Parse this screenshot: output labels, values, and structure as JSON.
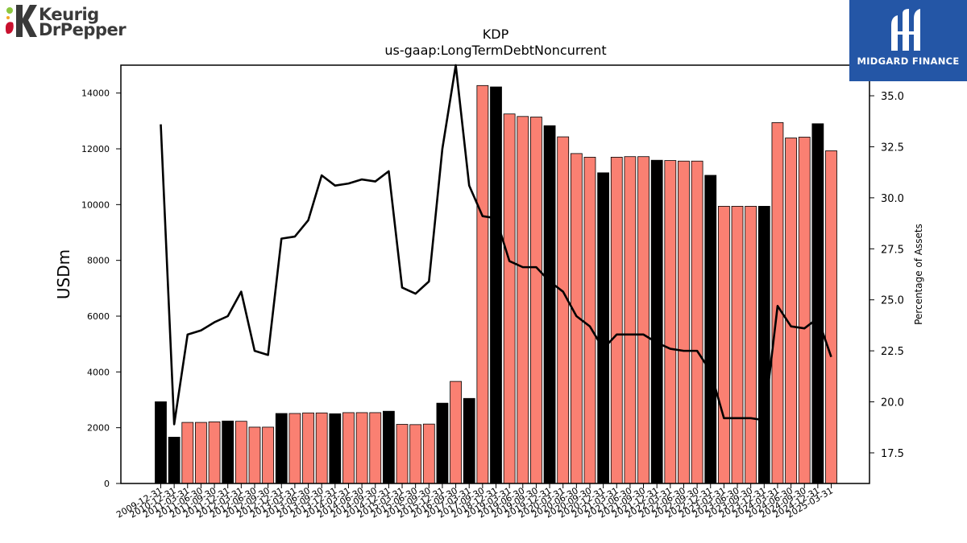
{
  "header": {
    "company_logo_line1": "Keurig",
    "company_logo_line2": "DrPepper"
  },
  "watermark": {
    "text": "MIDGARD FINANCE"
  },
  "colors": {
    "bar_normal": "#fa8072",
    "bar_highlight": "#000000",
    "line": "#000000",
    "brand_blue": "#2456a6"
  },
  "chart_data": {
    "type": "bar",
    "title": "KDP",
    "subtitle": "us-gaap:LongTermDebtNoncurrent",
    "ylabel": "USDm",
    "y2label": "Percentage of Assets",
    "ylim": [
      0,
      15000
    ],
    "y2lim": [
      16.0,
      36.5
    ],
    "yticks": [
      0,
      2000,
      4000,
      6000,
      8000,
      10000,
      12000,
      14000
    ],
    "y2ticks": [
      "17.5",
      "20.0",
      "22.5",
      "25.0",
      "27.5",
      "30.0",
      "32.5",
      "35.0"
    ],
    "categories": [
      "2009-12-31",
      "2010-12-31",
      "2011-03-31",
      "2011-06-30",
      "2011-09-30",
      "2011-12-31",
      "2012-03-31",
      "2012-06-30",
      "2012-09-30",
      "2012-12-31",
      "2013-03-31",
      "2013-06-30",
      "2013-09-30",
      "2013-12-31",
      "2014-03-31",
      "2014-06-30",
      "2014-09-30",
      "2014-12-31",
      "2015-03-31",
      "2015-06-30",
      "2015-09-30",
      "2015-12-31",
      "2016-09-30",
      "2017-03-31",
      "2017-09-30",
      "2018-12-31",
      "2019-03-31",
      "2019-06-30",
      "2019-09-30",
      "2019-12-31",
      "2020-03-31",
      "2020-06-30",
      "2020-09-30",
      "2020-12-31",
      "2021-03-31",
      "2021-06-30",
      "2021-09-30",
      "2021-12-31",
      "2022-03-31",
      "2022-06-30",
      "2022-09-30",
      "2022-12-31",
      "2023-03-31",
      "2023-06-30",
      "2023-09-30",
      "2023-12-31",
      "2024-03-31",
      "2024-06-30",
      "2024-09-30",
      "2024-12-31",
      "2025-03-31"
    ],
    "highlight": [
      true,
      true,
      false,
      false,
      false,
      true,
      false,
      false,
      false,
      true,
      false,
      false,
      false,
      true,
      false,
      false,
      false,
      true,
      false,
      false,
      false,
      true,
      false,
      true,
      false,
      true,
      false,
      false,
      false,
      true,
      false,
      false,
      false,
      true,
      false,
      false,
      false,
      true,
      false,
      false,
      false,
      true,
      false,
      false,
      false,
      true,
      false,
      false,
      false,
      true,
      false
    ],
    "series": [
      {
        "values": [
          2930,
          1660,
          2190,
          2190,
          2210,
          2240,
          2230,
          2020,
          2020,
          2510,
          2510,
          2530,
          2530,
          2500,
          2540,
          2540,
          2540,
          2590,
          2120,
          2110,
          2130,
          2880,
          3660,
          3050,
          14270,
          14220,
          13250,
          13160,
          13140,
          12830,
          12430,
          11830,
          11700,
          11140,
          11700,
          11720,
          11720,
          11590,
          11580,
          11560,
          11560,
          11050,
          9940,
          9940,
          9940,
          9940,
          12940,
          12390,
          12420,
          12900,
          11930
        ]
      },
      {
        "values": [
          33.6,
          18.9,
          23.3,
          23.5,
          23.9,
          24.2,
          25.4,
          22.5,
          22.3,
          28.0,
          28.1,
          28.9,
          31.1,
          30.6,
          30.7,
          30.9,
          30.8,
          31.3,
          25.6,
          25.3,
          25.9,
          32.4,
          36.5,
          30.6,
          29.1,
          29.0,
          26.9,
          26.6,
          26.6,
          25.9,
          25.4,
          24.2,
          23.7,
          22.6,
          23.3,
          23.3,
          23.3,
          22.9,
          22.6,
          22.5,
          22.5,
          21.5,
          19.2,
          19.2,
          19.2,
          19.1,
          24.7,
          23.7,
          23.6,
          24.1,
          22.2
        ]
      }
    ]
  }
}
